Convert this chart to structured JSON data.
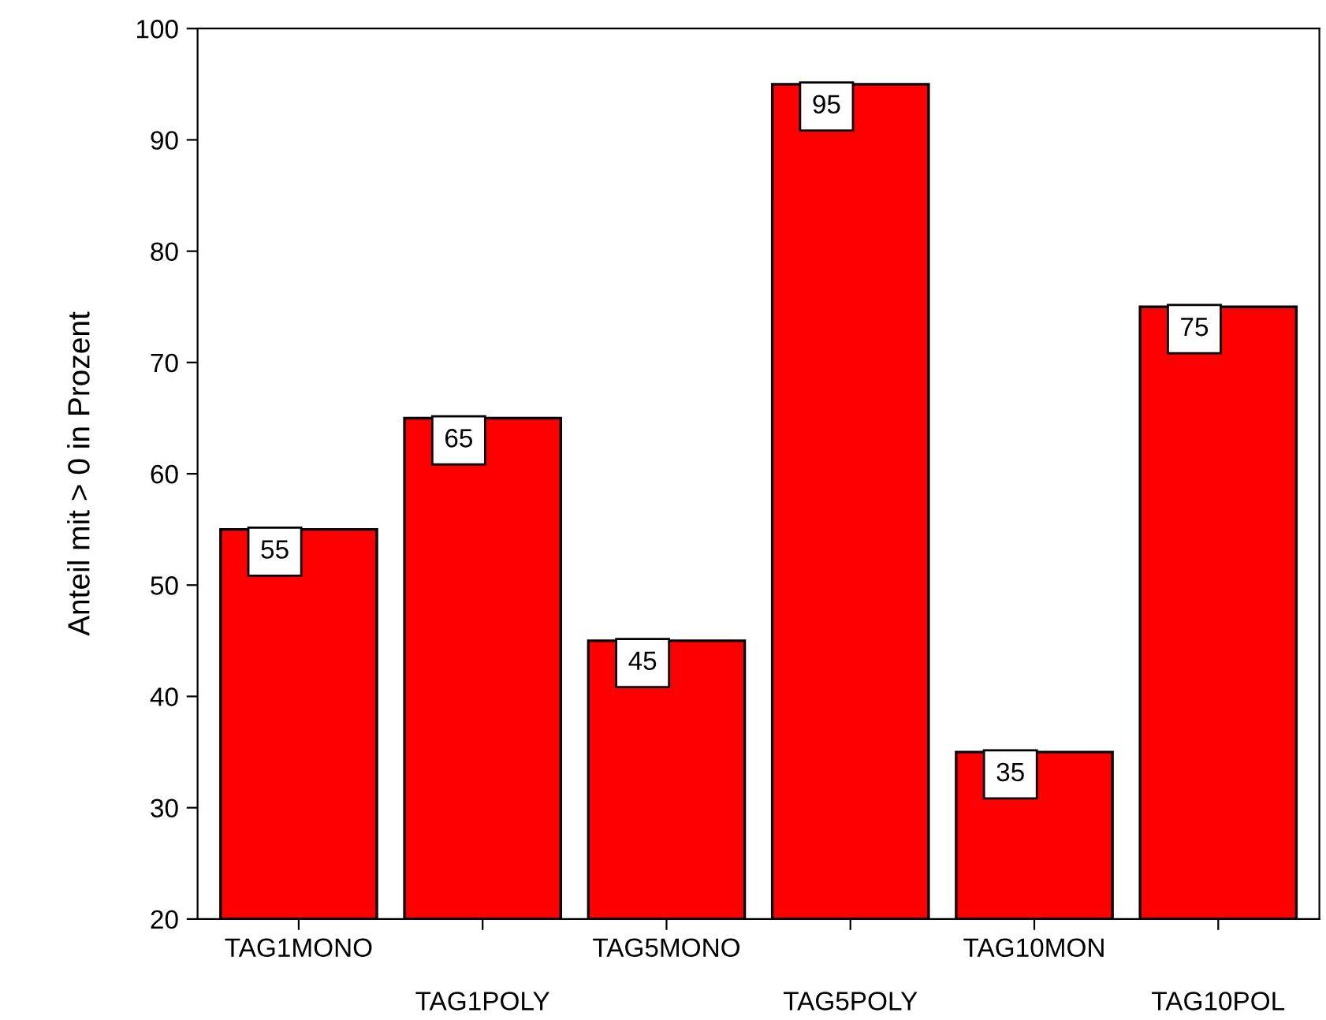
{
  "chart_data": {
    "type": "bar",
    "ylabel": "Anteil mit > 0 in Prozent",
    "categories": [
      "TAG1MONO",
      "TAG1POLY",
      "TAG5MONO",
      "TAG5POLY",
      "TAG10MON",
      "TAG10POL"
    ],
    "values": [
      55,
      65,
      45,
      95,
      35,
      75
    ],
    "color": "#ff0000",
    "ylim": [
      20,
      100
    ],
    "yticks": [
      20,
      30,
      40,
      50,
      60,
      70,
      80,
      90,
      100
    ],
    "grid": false,
    "data_labels": true
  }
}
